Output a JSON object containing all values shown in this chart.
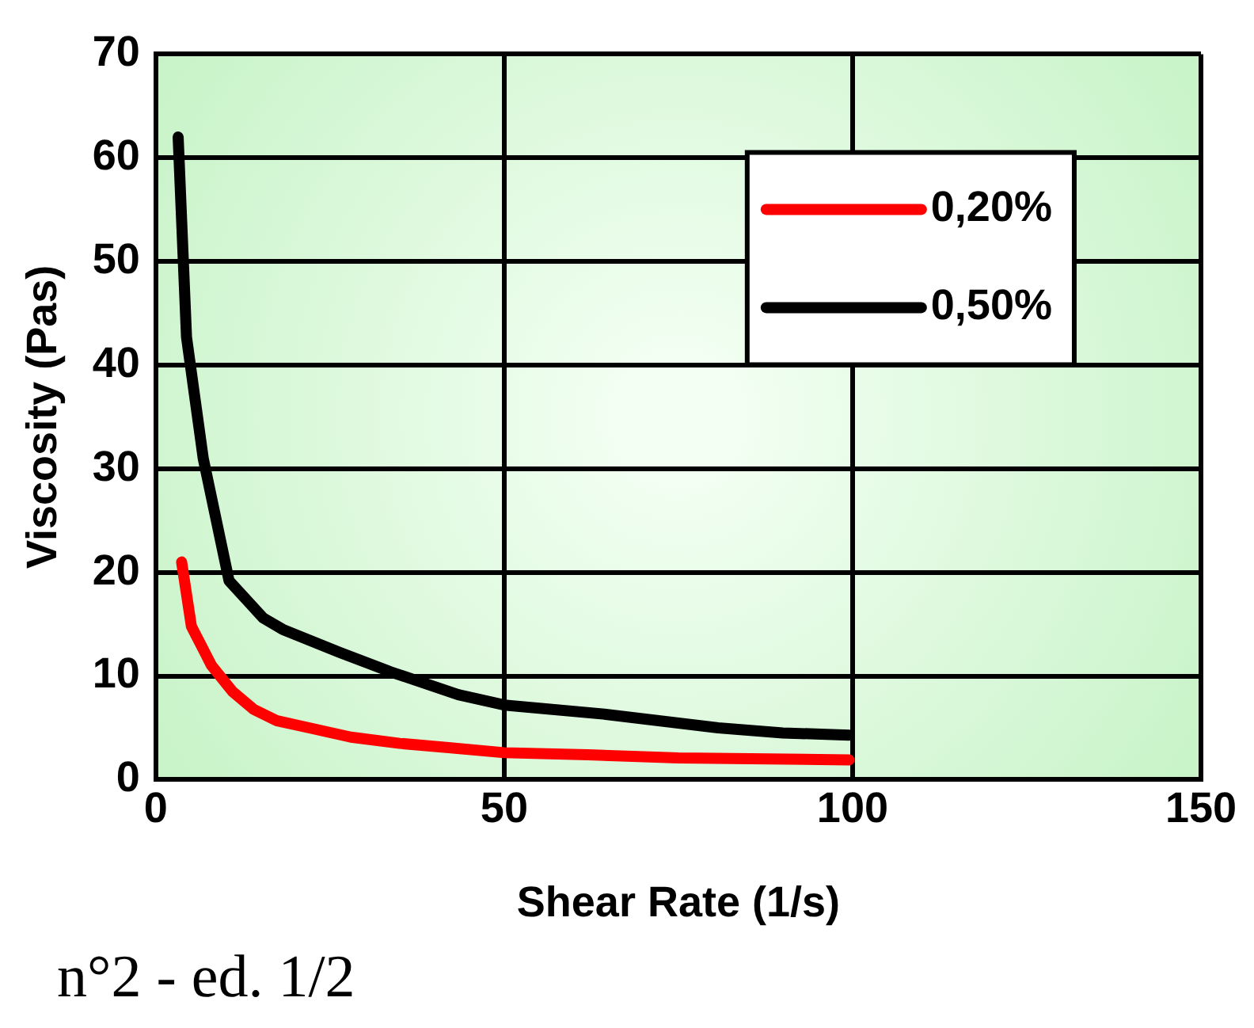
{
  "chart_data": {
    "type": "line",
    "xlabel": "Shear Rate (1/s)",
    "ylabel": "Viscosity (Pas)",
    "xlim": [
      0,
      150
    ],
    "xticks": [
      0,
      50,
      100,
      150
    ],
    "ylim": [
      0,
      70
    ],
    "yticks": [
      0,
      10,
      20,
      30,
      40,
      50,
      60,
      70
    ],
    "grid": true,
    "legend": "right",
    "marker": "none",
    "line_style": "solid",
    "series": [
      {
        "name": "0,20%",
        "color": "#ff0000",
        "x": [
          3.7,
          5.1,
          8,
          11,
          14,
          17.3,
          22,
          28,
          35,
          41.7,
          50,
          62,
          75,
          88,
          99.5
        ],
        "values": [
          21,
          14.8,
          11,
          8.5,
          6.8,
          5.7,
          5,
          4.1,
          3.5,
          3.1,
          2.6,
          2.4,
          2.1,
          2,
          1.9
        ]
      },
      {
        "name": "0,50%",
        "color": "#000000",
        "x": [
          3.2,
          4.4,
          6.8,
          10.5,
          15.4,
          18.2,
          26.3,
          33.7,
          43.4,
          50,
          64.6,
          80.7,
          90,
          99.5
        ],
        "values": [
          62,
          42.7,
          31,
          19.2,
          15.6,
          14.5,
          12.3,
          10.4,
          8.2,
          7.2,
          6.3,
          5,
          4.5,
          4.3
        ]
      }
    ],
    "annotations": [
      "n°2 - ed. 1/2"
    ]
  }
}
